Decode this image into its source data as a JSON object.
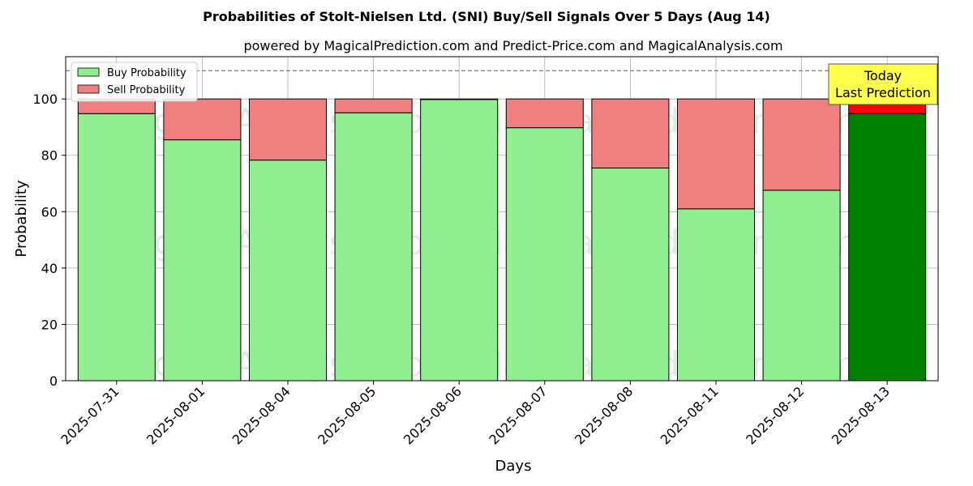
{
  "chart_data": {
    "type": "bar",
    "stacked": true,
    "title": "Probabilities of Stolt-Nielsen Ltd. (SNI) Buy/Sell Signals Over 5 Days (Aug 14)",
    "subtitle": "powered by MagicalPrediction.com and Predict-Price.com and MagicalAnalysis.com",
    "xlabel": "Days",
    "ylabel": "Probability",
    "ylim": [
      0,
      115
    ],
    "yticks": [
      0,
      20,
      40,
      60,
      80,
      100
    ],
    "reference_line": 110,
    "grid": true,
    "legend_position": "top-left",
    "categories": [
      "2025-07-31",
      "2025-08-01",
      "2025-08-04",
      "2025-08-05",
      "2025-08-06",
      "2025-08-07",
      "2025-08-08",
      "2025-08-11",
      "2025-08-12",
      "2025-08-13"
    ],
    "series": [
      {
        "name": "Buy Probability",
        "color": "#90ee90",
        "last_color": "#008000",
        "values": [
          94.8,
          85.5,
          78.3,
          95.1,
          99.8,
          89.8,
          75.5,
          61.0,
          67.6,
          94.8
        ]
      },
      {
        "name": "Sell Probability",
        "color": "#f08080",
        "last_color": "#ff0000",
        "values": [
          5.2,
          14.5,
          21.7,
          4.9,
          0.2,
          10.2,
          24.5,
          39.0,
          32.4,
          5.2
        ]
      }
    ],
    "annotation": {
      "lines": [
        "Today",
        "Last Prediction"
      ],
      "color": "#ffff4d"
    },
    "watermarks": [
      "MagicalAnalysis.com",
      "MagicalPrediction.com",
      "MagicalAnalysis.com",
      "MagicalPrediction.com",
      "MagicalAnalysis.com",
      "MagicalPrediction.com"
    ]
  }
}
